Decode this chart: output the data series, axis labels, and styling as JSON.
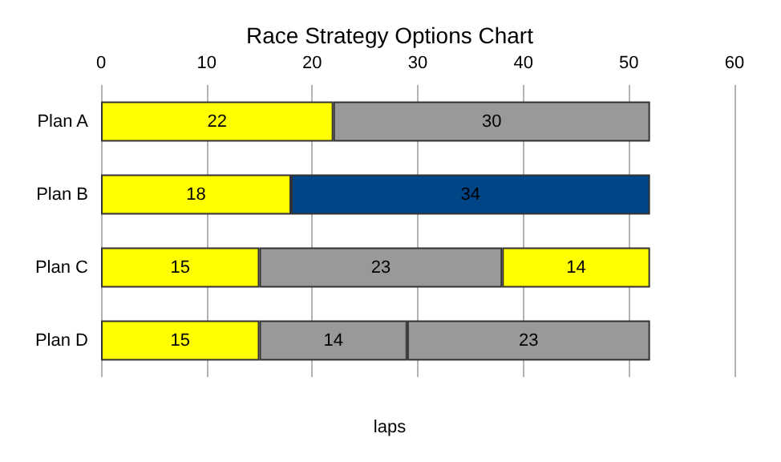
{
  "chart_data": {
    "type": "bar",
    "title": "Race Strategy Options Chart",
    "xlabel": "laps",
    "orientation": "horizontal",
    "stacked": true,
    "categories": [
      "Plan A",
      "Plan B",
      "Plan C",
      "Plan D"
    ],
    "series": [
      {
        "colors": [
          "#ffff00",
          "#ffff00",
          "#ffff00",
          "#ffff00"
        ],
        "values": [
          22,
          18,
          15,
          15
        ]
      },
      {
        "colors": [
          "#999999",
          "#004586",
          "#999999",
          "#999999"
        ],
        "values": [
          30,
          34,
          23,
          14
        ]
      },
      {
        "colors": [
          "#ffff00",
          "#ffff00",
          "#ffff00",
          "#999999"
        ],
        "values": [
          null,
          null,
          14,
          23
        ]
      }
    ],
    "xlim": [
      0,
      60
    ],
    "xticks": [
      0,
      10,
      20,
      30,
      40,
      50,
      60
    ],
    "grid": "x",
    "data_labels": true
  }
}
